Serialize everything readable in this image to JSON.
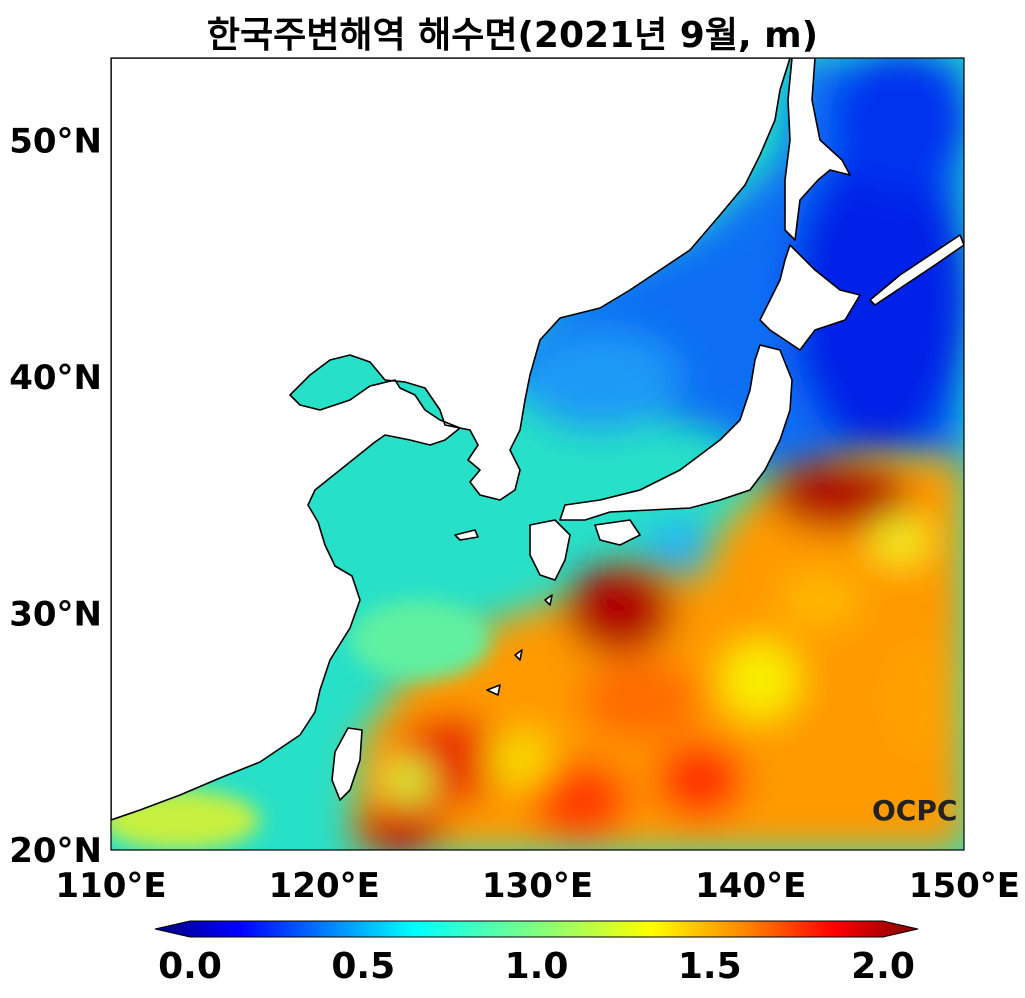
{
  "title": "한국주변해역 해수면(2021년 9월, m)",
  "map": {
    "lon_range": [
      110,
      150
    ],
    "lat_range": [
      20,
      53.5
    ],
    "lon_ticks": [
      "110°E",
      "120°E",
      "130°E",
      "140°E",
      "150°E"
    ],
    "lat_ticks": [
      "20°N",
      "30°N",
      "40°N",
      "50°N"
    ],
    "variable": "sea surface height (m)",
    "colormap": "jet"
  },
  "colorbar": {
    "min": 0.0,
    "max": 2.0,
    "tick_labels": [
      "0.0",
      "0.5",
      "1.0",
      "1.5",
      "2.0"
    ],
    "extend": "both",
    "colors": [
      "#00007f",
      "#0000ff",
      "#007fff",
      "#00ffff",
      "#7fff7f",
      "#ffff00",
      "#ff7f00",
      "#ff0000",
      "#7f0000"
    ]
  },
  "logo": "OCPC"
}
